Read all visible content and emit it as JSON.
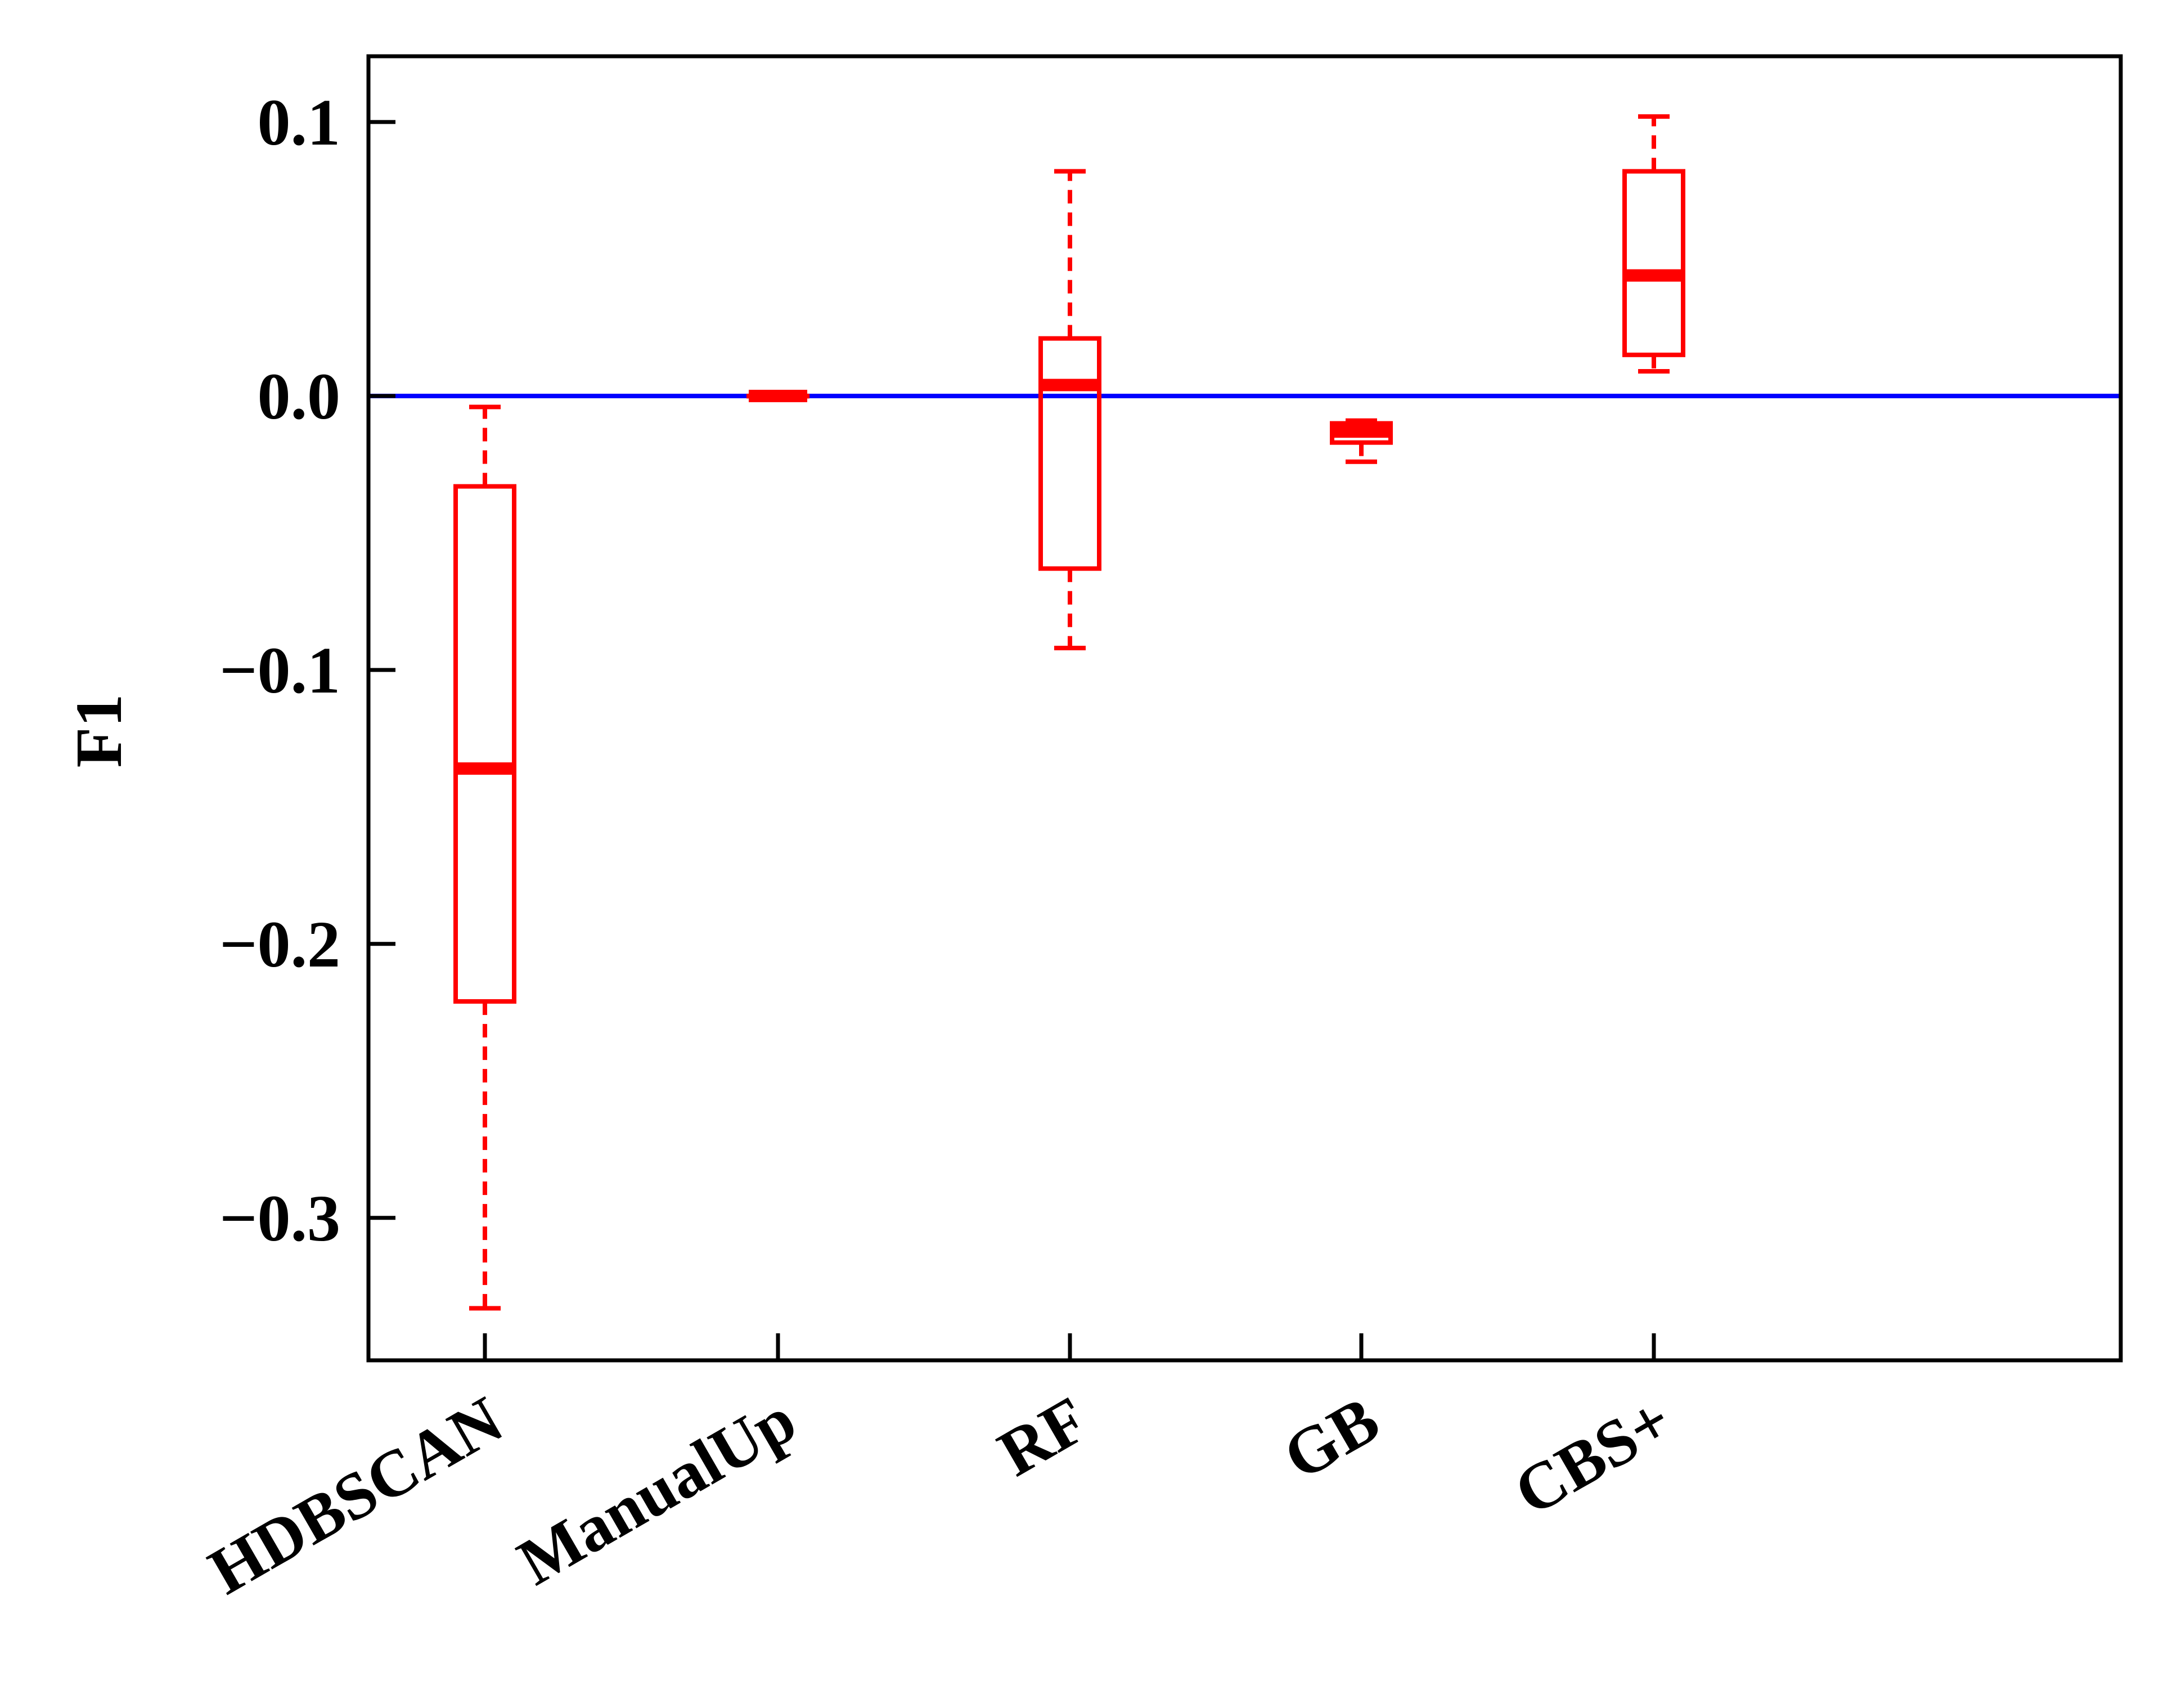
{
  "chart_data": {
    "type": "box",
    "title": "",
    "xlabel": "",
    "ylabel": "F1",
    "categories": [
      "HDBSCAN",
      "ManualUp",
      "RF",
      "GB",
      "CBS+"
    ],
    "ylim": [
      -0.352,
      0.124
    ],
    "yticks": [
      0.1,
      0.0,
      -0.1,
      -0.2,
      -0.3
    ],
    "ytick_labels": [
      "0.1",
      "0.0",
      "−0.1",
      "−0.2",
      "−0.3"
    ],
    "boxes": [
      {
        "category": "HDBSCAN",
        "whisker_low": -0.333,
        "q1": -0.221,
        "median": -0.136,
        "q3": -0.033,
        "whisker_high": -0.004
      },
      {
        "category": "ManualUp",
        "whisker_low": 0.0,
        "q1": 0.0,
        "median": 0.0,
        "q3": 0.0,
        "whisker_high": 0.0
      },
      {
        "category": "RF",
        "whisker_low": -0.092,
        "q1": -0.063,
        "median": 0.004,
        "q3": 0.021,
        "whisker_high": 0.082
      },
      {
        "category": "GB",
        "whisker_low": -0.024,
        "q1": -0.017,
        "median": -0.013,
        "q3": -0.01,
        "whisker_high": -0.009
      },
      {
        "category": "CBS+",
        "whisker_low": 0.009,
        "q1": 0.015,
        "median": 0.044,
        "q3": 0.082,
        "whisker_high": 0.102
      }
    ],
    "reference_line": {
      "y": 0.0,
      "color": "#0000ff"
    },
    "box_color": "#ff0000",
    "whisker_style": "dashed",
    "grid": false,
    "legend": "none"
  }
}
